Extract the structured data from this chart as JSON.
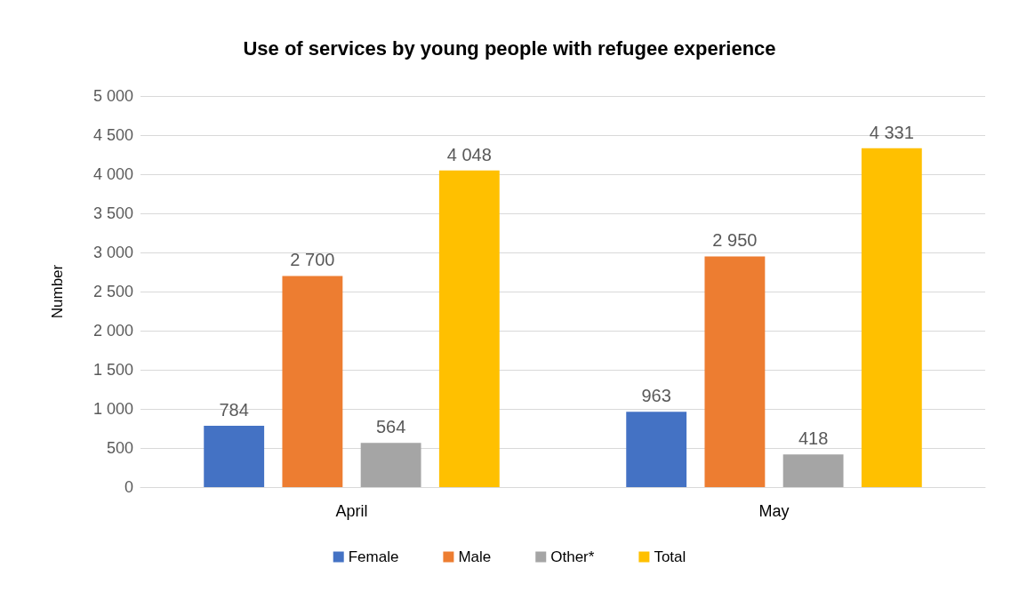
{
  "chart_data": {
    "type": "bar",
    "title": "Use of services by young people with refugee experience",
    "ylabel": "Number",
    "categories": [
      "April",
      "May"
    ],
    "series": [
      {
        "name": "Female",
        "color": "#4472c4",
        "values": [
          784,
          963
        ],
        "value_labels": [
          "784",
          "963"
        ]
      },
      {
        "name": "Male",
        "color": "#ed7d31",
        "values": [
          2700,
          2950
        ],
        "value_labels": [
          "2 700",
          "2 950"
        ]
      },
      {
        "name": "Other*",
        "color": "#a5a5a5",
        "values": [
          564,
          418
        ],
        "value_labels": [
          "564",
          "418"
        ]
      },
      {
        "name": "Total",
        "color": "#ffc000",
        "values": [
          4048,
          4331
        ],
        "value_labels": [
          "4 048",
          "4 331"
        ]
      }
    ],
    "ylim": [
      0,
      5000
    ],
    "yticks": [
      {
        "value": 0,
        "label": "0"
      },
      {
        "value": 500,
        "label": "500"
      },
      {
        "value": 1000,
        "label": "1 000"
      },
      {
        "value": 1500,
        "label": "1 500"
      },
      {
        "value": 2000,
        "label": "2 000"
      },
      {
        "value": 2500,
        "label": "2 500"
      },
      {
        "value": 3000,
        "label": "3 000"
      },
      {
        "value": 3500,
        "label": "3 500"
      },
      {
        "value": 4000,
        "label": "4 000"
      },
      {
        "value": 4500,
        "label": "4 500"
      },
      {
        "value": 5000,
        "label": "5 000"
      }
    ],
    "grid": "y",
    "legend": "bottom"
  }
}
